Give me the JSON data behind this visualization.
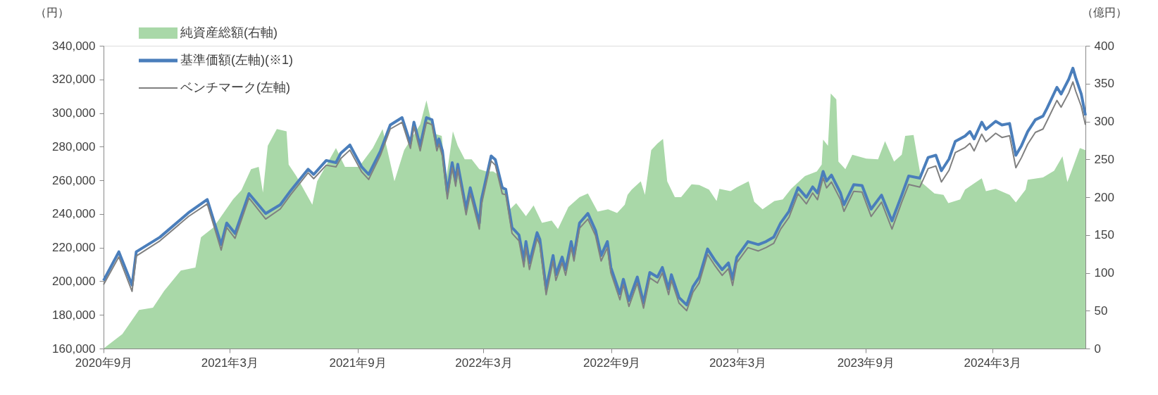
{
  "chart_data": {
    "type": "line",
    "ylabel": "（円）",
    "y2label": "（億円）",
    "xlim": [
      "2020-09-01",
      "2024-07-13"
    ],
    "xticks": [
      {
        "value": "2020-09-01",
        "label": "2020年9月"
      },
      {
        "value": "2021-03-01",
        "label": "2021年3月"
      },
      {
        "value": "2021-09-01",
        "label": "2021年9月"
      },
      {
        "value": "2022-03-01",
        "label": "2022年3月"
      },
      {
        "value": "2022-09-01",
        "label": "2022年9月"
      },
      {
        "value": "2023-03-01",
        "label": "2023年3月"
      },
      {
        "value": "2023-09-01",
        "label": "2023年9月"
      },
      {
        "value": "2024-03-01",
        "label": "2024年3月"
      }
    ],
    "ylim": [
      160000,
      340000
    ],
    "yticks": [
      {
        "value": 160000,
        "label": "160,000"
      },
      {
        "value": 180000,
        "label": "180,000"
      },
      {
        "value": 200000,
        "label": "200,000"
      },
      {
        "value": 220000,
        "label": "220,000"
      },
      {
        "value": 240000,
        "label": "240,000"
      },
      {
        "value": 260000,
        "label": "260,000"
      },
      {
        "value": 280000,
        "label": "280,000"
      },
      {
        "value": 300000,
        "label": "300,000"
      },
      {
        "value": 320000,
        "label": "320,000"
      },
      {
        "value": 340000,
        "label": "340,000"
      }
    ],
    "y2lim": [
      0,
      400
    ],
    "y2ticks": [
      0,
      50,
      100,
      150,
      200,
      250,
      300,
      350,
      400
    ],
    "legend": "top left",
    "x": [
      "2020-09-01",
      "2020-09-23",
      "2020-10-12",
      "2020-10-18",
      "2020-11-21",
      "2021-01-01",
      "2021-01-28",
      "2021-02-17",
      "2021-02-25",
      "2021-03-09",
      "2021-03-29",
      "2021-04-22",
      "2021-05-13",
      "2021-05-28",
      "2021-06-22",
      "2021-06-30",
      "2021-07-18",
      "2021-08-01",
      "2021-08-08",
      "2021-08-21",
      "2021-09-07",
      "2021-09-17",
      "2021-10-04",
      "2021-10-18",
      "2021-11-04",
      "2021-11-16",
      "2021-11-21",
      "2021-11-30",
      "2021-12-09",
      "2021-12-17",
      "2021-12-24",
      "2021-12-27",
      "2022-01-01",
      "2022-01-08",
      "2022-01-15",
      "2022-01-20",
      "2022-01-23",
      "2022-02-04",
      "2022-02-10",
      "2022-02-23",
      "2022-02-26",
      "2022-03-12",
      "2022-03-18",
      "2022-03-28",
      "2022-04-02",
      "2022-04-11",
      "2022-04-21",
      "2022-04-28",
      "2022-05-01",
      "2022-05-06",
      "2022-05-17",
      "2022-05-21",
      "2022-05-30",
      "2022-06-09",
      "2022-06-13",
      "2022-06-22",
      "2022-06-27",
      "2022-07-05",
      "2022-07-09",
      "2022-07-17",
      "2022-07-29",
      "2022-08-09",
      "2022-08-17",
      "2022-08-26",
      "2022-08-31",
      "2022-09-13",
      "2022-09-18",
      "2022-09-26",
      "2022-10-08",
      "2022-10-17",
      "2022-10-26",
      "2022-11-06",
      "2022-11-13",
      "2022-11-22",
      "2022-11-26",
      "2022-12-07",
      "2022-12-18",
      "2022-12-27",
      "2023-01-05",
      "2023-01-17",
      "2023-01-28",
      "2023-02-07",
      "2023-02-16",
      "2023-02-22",
      "2023-02-28",
      "2023-03-16",
      "2023-03-31",
      "2023-04-11",
      "2023-04-22",
      "2023-05-02",
      "2023-05-14",
      "2023-05-27",
      "2023-06-08",
      "2023-06-17",
      "2023-06-24",
      "2023-07-02",
      "2023-07-07",
      "2023-07-14",
      "2023-07-27",
      "2023-08-01",
      "2023-08-15",
      "2023-08-27",
      "2023-09-09",
      "2023-09-24",
      "2023-10-09",
      "2023-10-23",
      "2023-11-02",
      "2023-11-18",
      "2023-11-30",
      "2023-12-11",
      "2023-12-19",
      "2023-12-30",
      "2024-01-08",
      "2024-01-22",
      "2024-01-29",
      "2024-02-04",
      "2024-02-15",
      "2024-02-21",
      "2024-03-06",
      "2024-03-15",
      "2024-03-26",
      "2024-04-04",
      "2024-04-12",
      "2024-04-21",
      "2024-05-02",
      "2024-05-13",
      "2024-05-19",
      "2024-06-02",
      "2024-06-08",
      "2024-06-19",
      "2024-06-25",
      "2024-06-29",
      "2024-07-07",
      "2024-07-13"
    ],
    "series": [
      {
        "name": "純資産総額(右軸)",
        "type": "area",
        "axis": "y2",
        "color": "#a9d8a8",
        "x": [
          "2020-09-01",
          "2020-09-28",
          "2020-10-22",
          "2020-11-11",
          "2020-11-27",
          "2020-12-21",
          "2021-01-11",
          "2021-01-19",
          "2021-02-06",
          "2021-03-06",
          "2021-03-18",
          "2021-04-01",
          "2021-04-12",
          "2021-04-18",
          "2021-04-25",
          "2021-05-08",
          "2021-05-22",
          "2021-05-25",
          "2021-06-05",
          "2021-06-14",
          "2021-06-28",
          "2021-07-05",
          "2021-08-01",
          "2021-08-14",
          "2021-09-03",
          "2021-09-23",
          "2021-10-07",
          "2021-10-24",
          "2021-11-07",
          "2021-11-30",
          "2021-12-09",
          "2021-12-20",
          "2021-12-31",
          "2022-01-06",
          "2022-01-16",
          "2022-01-23",
          "2022-02-02",
          "2022-02-12",
          "2022-02-23",
          "2022-03-05",
          "2022-03-15",
          "2022-03-25",
          "2022-04-08",
          "2022-04-17",
          "2022-05-01",
          "2022-05-12",
          "2022-05-24",
          "2022-06-07",
          "2022-06-16",
          "2022-07-01",
          "2022-07-17",
          "2022-07-29",
          "2022-08-12",
          "2022-08-27",
          "2022-09-09",
          "2022-09-20",
          "2022-09-24",
          "2022-09-30",
          "2022-10-13",
          "2022-10-19",
          "2022-10-28",
          "2022-11-06",
          "2022-11-14",
          "2022-11-20",
          "2022-12-01",
          "2022-12-10",
          "2022-12-25",
          "2023-01-05",
          "2023-01-19",
          "2023-01-30",
          "2023-02-03",
          "2023-02-19",
          "2023-02-28",
          "2023-03-17",
          "2023-03-25",
          "2023-04-06",
          "2023-04-23",
          "2023-05-05",
          "2023-05-17",
          "2023-06-06",
          "2023-06-23",
          "2023-06-30",
          "2023-07-02",
          "2023-07-09",
          "2023-07-13",
          "2023-07-21",
          "2023-07-24",
          "2023-08-03",
          "2023-08-13",
          "2023-09-02",
          "2023-09-19",
          "2023-09-29",
          "2023-10-12",
          "2023-10-23",
          "2023-10-28",
          "2023-11-09",
          "2023-11-15",
          "2023-11-21",
          "2023-12-09",
          "2023-12-22",
          "2023-12-29",
          "2024-01-15",
          "2024-01-22",
          "2024-02-15",
          "2024-02-21",
          "2024-03-06",
          "2024-03-26",
          "2024-04-04",
          "2024-04-18",
          "2024-04-21",
          "2024-05-13",
          "2024-05-29",
          "2024-06-10",
          "2024-06-17",
          "2024-06-22",
          "2024-07-05",
          "2024-07-13"
        ],
        "values": [
          0,
          19,
          51,
          54,
          76,
          103,
          107,
          147,
          160,
          197,
          209,
          237,
          240,
          206,
          268,
          290,
          287,
          243,
          228,
          213,
          190,
          221,
          265,
          240,
          240,
          265,
          290,
          221,
          262,
          296,
          328,
          284,
          281,
          221,
          287,
          268,
          250,
          250,
          237,
          234,
          234,
          228,
          184,
          192,
          175,
          189,
          166,
          169,
          158,
          187,
          200,
          205,
          181,
          184,
          179,
          190,
          203,
          210,
          221,
          203,
          262,
          271,
          277,
          221,
          200,
          200,
          217,
          216,
          210,
          195,
          211,
          208,
          213,
          221,
          194,
          184,
          195,
          197,
          211,
          228,
          234,
          243,
          276,
          268,
          337,
          329,
          247,
          237,
          256,
          251,
          250,
          274,
          247,
          256,
          281,
          282,
          250,
          219,
          205,
          203,
          192,
          197,
          210,
          225,
          208,
          211,
          203,
          193,
          210,
          223,
          226,
          235,
          254,
          220,
          232,
          265,
          262
        ]
      },
      {
        "name": "基準価額(左軸)(※1)",
        "color": "#4a7ebb",
        "values": [
          200400,
          217500,
          197700,
          217500,
          226200,
          240700,
          248600,
          221800,
          234600,
          228400,
          252100,
          240300,
          245500,
          253900,
          266600,
          263500,
          271800,
          270500,
          276200,
          281000,
          267900,
          263500,
          277500,
          292900,
          297300,
          281900,
          294600,
          280600,
          297300,
          296000,
          280600,
          284600,
          277500,
          252500,
          270500,
          259600,
          269600,
          242900,
          255600,
          234600,
          248600,
          274500,
          272300,
          255600,
          254700,
          231900,
          227500,
          212200,
          223600,
          210900,
          228900,
          224900,
          195500,
          215300,
          203900,
          214400,
          206900,
          223600,
          215300,
          234600,
          240300,
          230200,
          215300,
          223600,
          208200,
          192500,
          201200,
          188500,
          202500,
          187200,
          205200,
          202500,
          208200,
          195500,
          203900,
          190300,
          185900,
          196800,
          202500,
          219200,
          212200,
          206900,
          210900,
          201200,
          214400,
          223600,
          221800,
          223600,
          226200,
          234600,
          241600,
          255600,
          249900,
          256100,
          252500,
          265300,
          259600,
          263100,
          252500,
          245500,
          257400,
          256900,
          242900,
          251200,
          235900,
          251200,
          262600,
          261300,
          273600,
          274900,
          265700,
          272700,
          283200,
          286300,
          289000,
          284600,
          294600,
          290300,
          295100,
          292900,
          293800,
          274900,
          280600,
          289000,
          296000,
          298200,
          303000,
          315300,
          311300,
          320100,
          326700,
          321000,
          311300,
          298600
        ]
      },
      {
        "name": "ベンチマーク(左軸)",
        "color": "#808080",
        "values": [
          198000,
          214500,
          194000,
          215000,
          224000,
          238500,
          246000,
          218500,
          232000,
          225500,
          249500,
          237000,
          243000,
          251500,
          264500,
          261000,
          269000,
          268000,
          273000,
          278000,
          265000,
          260500,
          275000,
          290500,
          294500,
          279000,
          292000,
          277500,
          294500,
          293000,
          277500,
          281500,
          274500,
          249000,
          267500,
          256500,
          266500,
          239500,
          252000,
          231000,
          245500,
          271500,
          269000,
          252000,
          251500,
          228500,
          224000,
          208500,
          220000,
          207000,
          225500,
          221500,
          192000,
          212000,
          200500,
          211000,
          203500,
          220000,
          212000,
          231500,
          237000,
          227000,
          212000,
          220000,
          205000,
          189000,
          198000,
          185000,
          199000,
          184000,
          202000,
          199000,
          205000,
          192000,
          200500,
          187000,
          182500,
          193500,
          199000,
          216000,
          209000,
          203500,
          207500,
          197500,
          211000,
          220000,
          218000,
          220000,
          222500,
          231000,
          238000,
          252000,
          246000,
          252500,
          248500,
          261500,
          255500,
          259000,
          248500,
          241500,
          253500,
          253000,
          238500,
          247000,
          231000,
          247000,
          257500,
          256000,
          267000,
          268500,
          259000,
          266000,
          276500,
          279500,
          282000,
          277500,
          287500,
          283000,
          288000,
          285500,
          286500,
          267500,
          273500,
          281500,
          288500,
          290500,
          295500,
          307500,
          303500,
          312000,
          318500,
          313000,
          304000,
          293000
        ]
      }
    ]
  }
}
